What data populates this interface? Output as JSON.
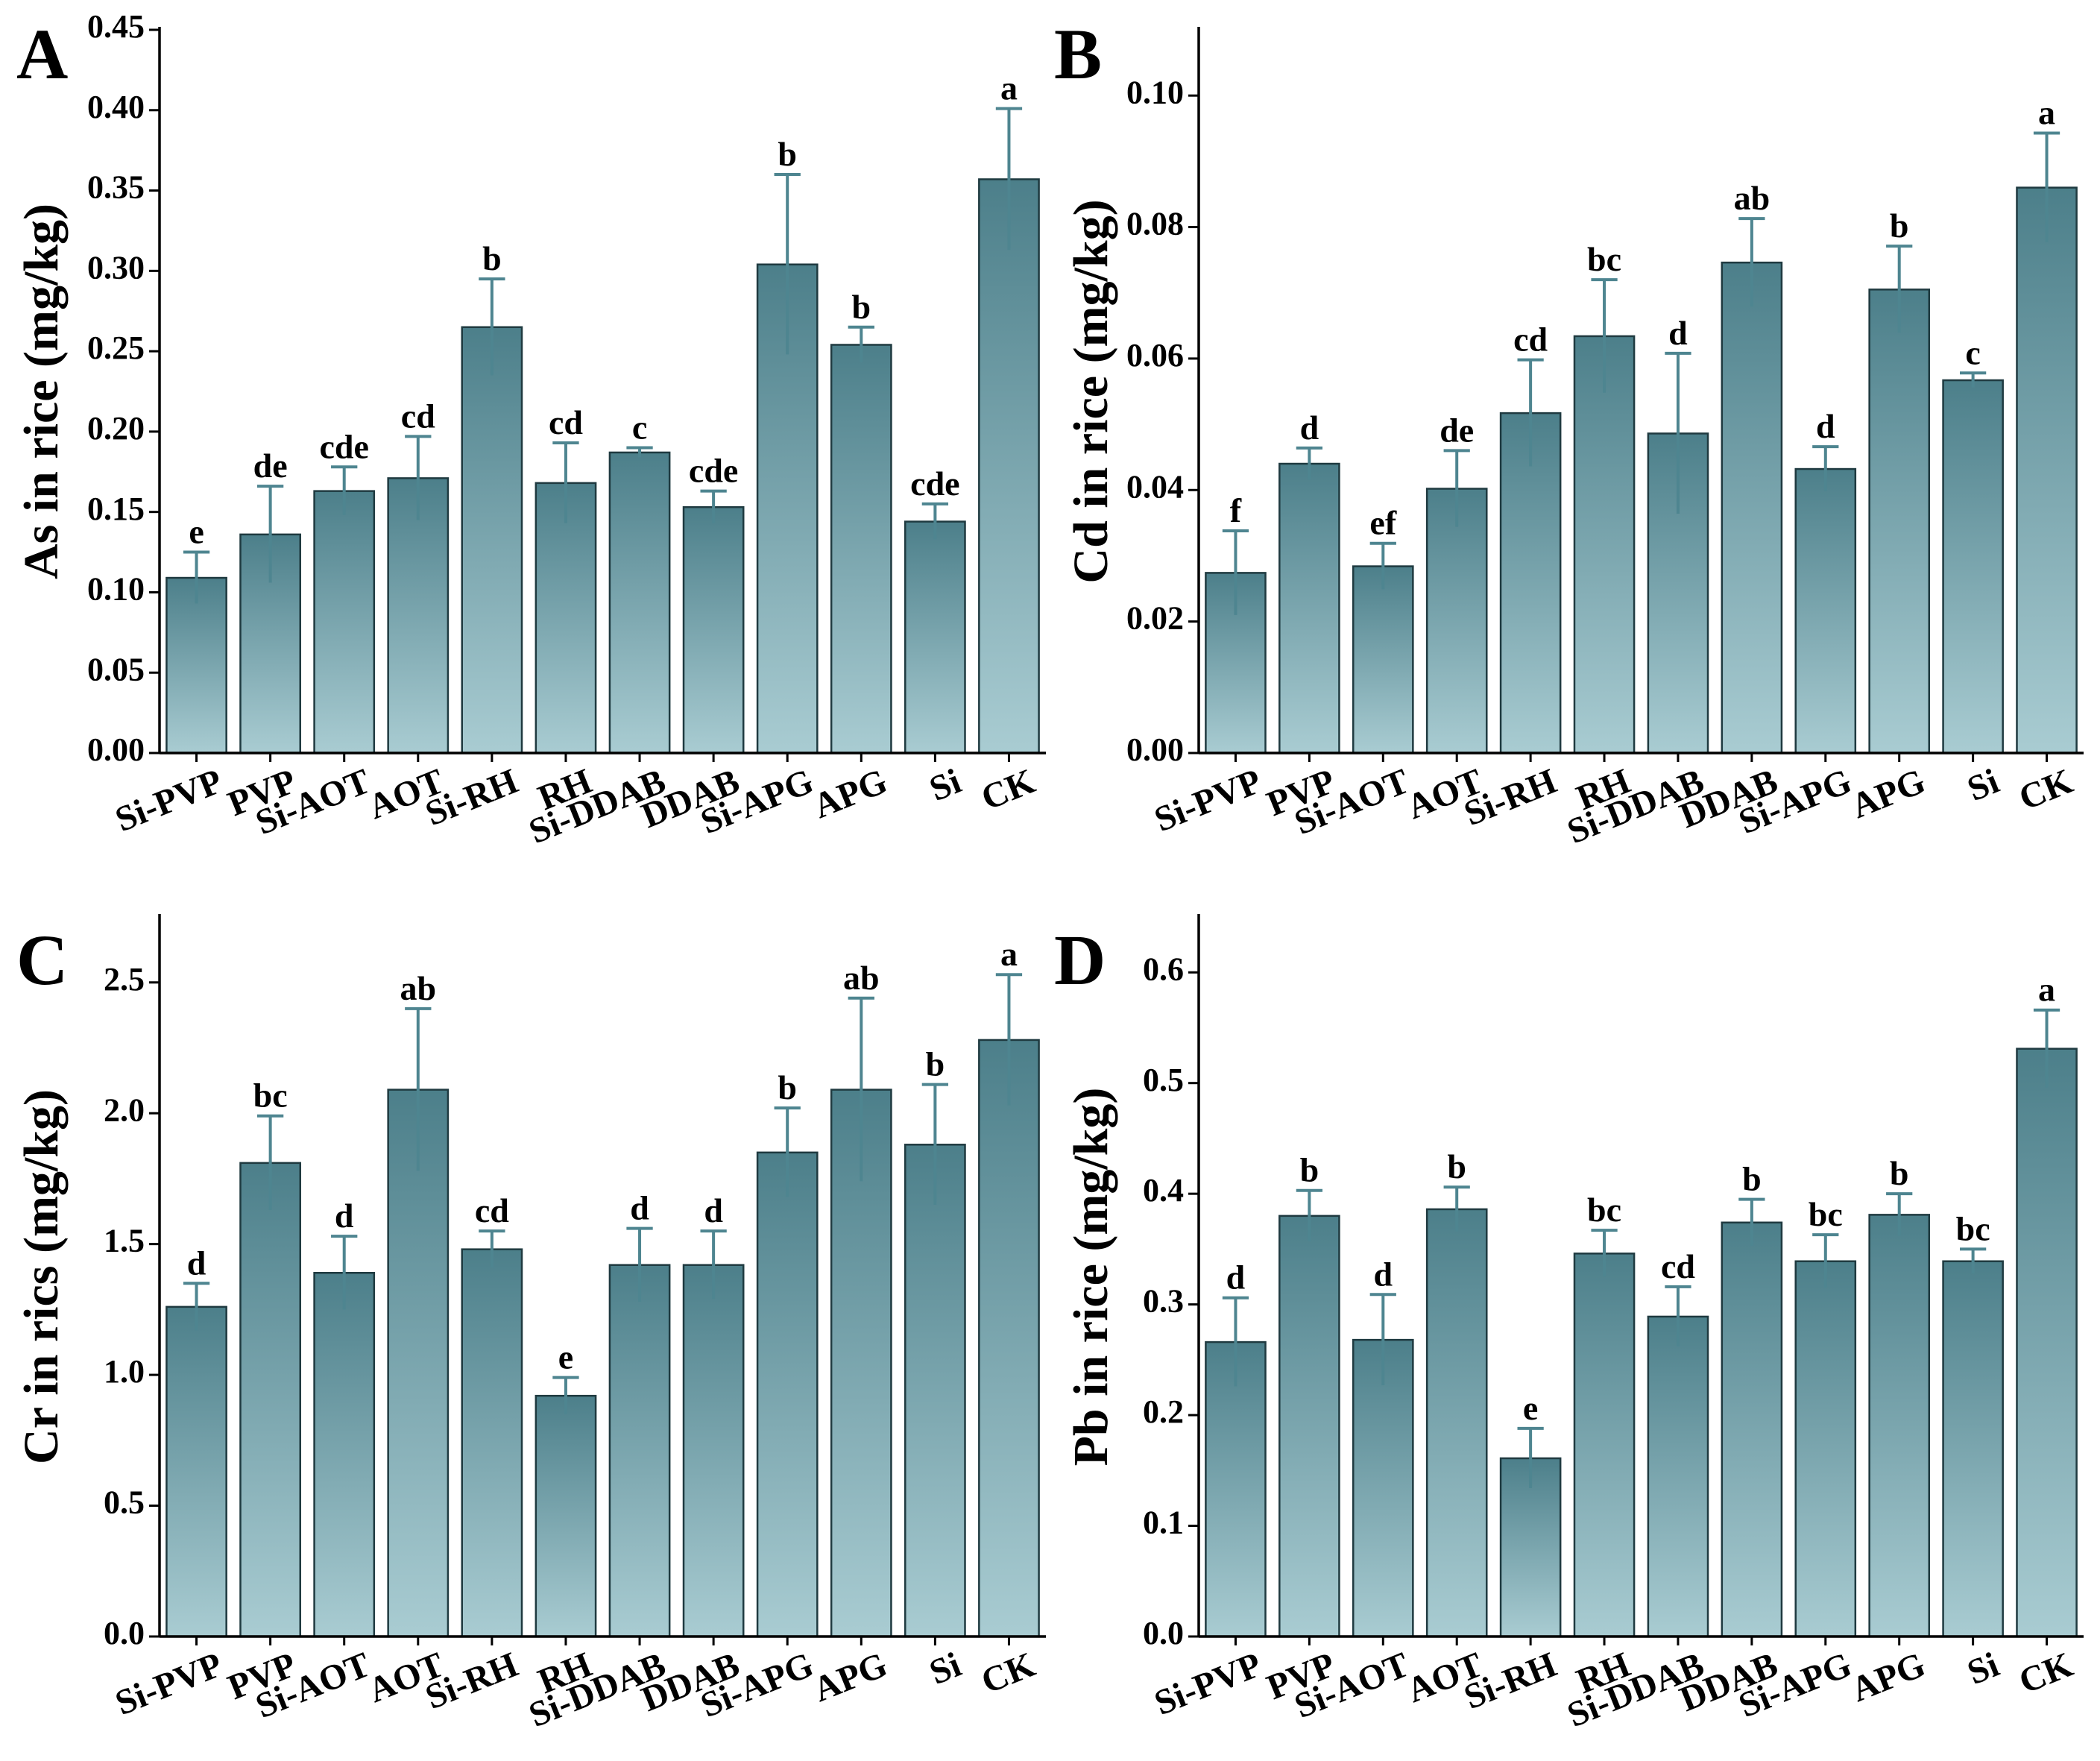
{
  "colors": {
    "bar_top": "#4c7f8a",
    "bar_bottom": "#a9ccd2",
    "bar_edge": "#1f3a40",
    "error": "#4e8590",
    "axis": "#000000"
  },
  "chart_data": [
    {
      "panel_label": "A",
      "type": "bar",
      "ylabel": "As in rice (mg/kg)",
      "ylim": [
        0,
        0.45
      ],
      "yticks": [
        "0.00",
        "0.05",
        "0.10",
        "0.15",
        "0.20",
        "0.25",
        "0.30",
        "0.35",
        "0.40",
        "0.45"
      ],
      "categories": [
        "Si-PVP",
        "PVP",
        "Si-AOT",
        "AOT",
        "Si-RH",
        "RH",
        "Si-DDAB",
        "DDAB",
        "Si-APG",
        "APG",
        "Si",
        "CK"
      ],
      "values": [
        0.109,
        0.136,
        0.163,
        0.171,
        0.265,
        0.168,
        0.187,
        0.153,
        0.304,
        0.254,
        0.144,
        0.357
      ],
      "errors": [
        0.016,
        0.03,
        0.015,
        0.026,
        0.03,
        0.025,
        0.003,
        0.01,
        0.056,
        0.011,
        0.011,
        0.044
      ],
      "letters": [
        "e",
        "de",
        "cde",
        "cd",
        "b",
        "cd",
        "c",
        "cde",
        "b",
        "b",
        "cde",
        "a"
      ]
    },
    {
      "panel_label": "B",
      "type": "bar",
      "ylabel": "Cd in rice (mg/kg)",
      "ylim": [
        0,
        0.11
      ],
      "yticks": [
        "0.00",
        "0.02",
        "0.04",
        "0.06",
        "0.08",
        "0.10"
      ],
      "categories": [
        "Si-PVP",
        "PVP",
        "Si-AOT",
        "AOT",
        "Si-RH",
        "RH",
        "Si-DDAB",
        "DDAB",
        "Si-APG",
        "APG",
        "Si",
        "CK"
      ],
      "values": [
        0.0274,
        0.044,
        0.0284,
        0.0402,
        0.0517,
        0.0634,
        0.0486,
        0.0746,
        0.0432,
        0.0705,
        0.0567,
        0.086
      ],
      "errors": [
        0.0064,
        0.0024,
        0.0035,
        0.0058,
        0.0081,
        0.0086,
        0.0122,
        0.0067,
        0.0034,
        0.0066,
        0.0011,
        0.0083
      ],
      "letters": [
        "f",
        "d",
        "ef",
        "de",
        "cd",
        "bc",
        "d",
        "ab",
        "d",
        "b",
        "c",
        "a"
      ]
    },
    {
      "panel_label": "C",
      "type": "bar",
      "ylabel": "Cr in rics (mg/kg)",
      "ylim": [
        0,
        2.75
      ],
      "yticks": [
        "0.0",
        "0.5",
        "1.0",
        "1.5",
        "2.0",
        "2.5"
      ],
      "categories": [
        "Si-PVP",
        "PVP",
        "Si-AOT",
        "AOT",
        "Si-RH",
        "RH",
        "Si-DDAB",
        "DDAB",
        "Si-APG",
        "APG",
        "Si",
        "CK"
      ],
      "values": [
        1.26,
        1.81,
        1.39,
        2.09,
        1.48,
        0.92,
        1.42,
        1.42,
        1.85,
        2.09,
        1.88,
        2.28
      ],
      "errors": [
        0.09,
        0.18,
        0.14,
        0.31,
        0.07,
        0.07,
        0.14,
        0.13,
        0.17,
        0.35,
        0.23,
        0.25
      ],
      "letters": [
        "d",
        "bc",
        "d",
        "ab",
        "cd",
        "e",
        "d",
        "d",
        "b",
        "ab",
        "b",
        "a"
      ]
    },
    {
      "panel_label": "D",
      "type": "bar",
      "ylabel": "Pb in rice (mg/kg)",
      "ylim": [
        0,
        0.65
      ],
      "yticks": [
        "0.0",
        "0.1",
        "0.2",
        "0.3",
        "0.4",
        "0.5",
        "0.6"
      ],
      "categories": [
        "Si-PVP",
        "PVP",
        "Si-AOT",
        "AOT",
        "Si-RH",
        "RH",
        "Si-DDAB",
        "DDAB",
        "Si-APG",
        "APG",
        "Si",
        "CK"
      ],
      "values": [
        0.266,
        0.38,
        0.268,
        0.386,
        0.161,
        0.346,
        0.289,
        0.374,
        0.339,
        0.381,
        0.339,
        0.531
      ],
      "errors": [
        0.04,
        0.023,
        0.041,
        0.02,
        0.027,
        0.021,
        0.027,
        0.021,
        0.024,
        0.019,
        0.011,
        0.035
      ],
      "letters": [
        "d",
        "b",
        "d",
        "b",
        "e",
        "bc",
        "cd",
        "b",
        "bc",
        "b",
        "bc",
        "a"
      ]
    }
  ]
}
